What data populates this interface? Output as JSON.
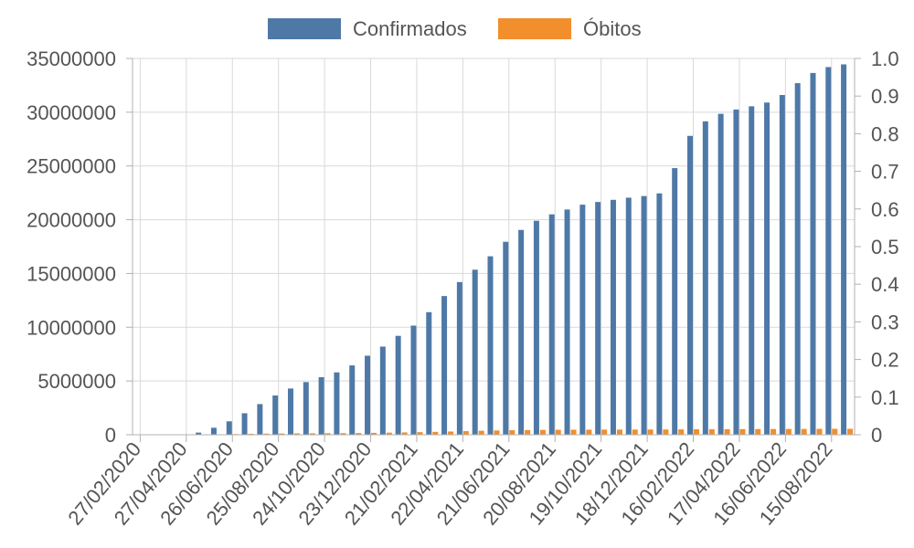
{
  "chart_data": {
    "type": "bar",
    "legend_position": "top",
    "grid": true,
    "series": [
      {
        "name": "Confirmados",
        "color": "#4e79a7",
        "axis": "left",
        "values": [
          0,
          0,
          0,
          0,
          200000,
          650000,
          1250000,
          2000000,
          2850000,
          3650000,
          4300000,
          4900000,
          5350000,
          5800000,
          6450000,
          7350000,
          8200000,
          9200000,
          10150000,
          11400000,
          12900000,
          14200000,
          15350000,
          16600000,
          17950000,
          19050000,
          19900000,
          20500000,
          20950000,
          21400000,
          21650000,
          21850000,
          22050000,
          22200000,
          22450000,
          24800000,
          27800000,
          29150000,
          29850000,
          30250000,
          30550000,
          30900000,
          31600000,
          32700000,
          33650000,
          34200000,
          34450000
        ]
      },
      {
        "name": "Óbitos",
        "color": "#f28e2b",
        "axis": "right",
        "values": [
          0,
          0,
          0,
          0,
          0.0004,
          0.0011,
          0.0018,
          0.0025,
          0.003,
          0.0034,
          0.0037,
          0.0039,
          0.0041,
          0.0043,
          0.0046,
          0.0051,
          0.0056,
          0.0062,
          0.0069,
          0.0077,
          0.0086,
          0.0096,
          0.0106,
          0.0114,
          0.012,
          0.0125,
          0.0129,
          0.0132,
          0.0134,
          0.0135,
          0.0136,
          0.0137,
          0.0138,
          0.0139,
          0.014,
          0.0142,
          0.0145,
          0.0147,
          0.0149,
          0.015,
          0.0151,
          0.0152,
          0.0153,
          0.0154,
          0.0156,
          0.0157,
          0.0158
        ]
      }
    ],
    "x_tick_labels": [
      "27/02/2020",
      "27/04/2020",
      "26/06/2020",
      "25/08/2020",
      "24/10/2020",
      "23/12/2020",
      "21/02/2021",
      "22/04/2021",
      "21/06/2021",
      "20/08/2021",
      "19/10/2021",
      "18/12/2021",
      "16/02/2022",
      "17/04/2022",
      "16/06/2022",
      "15/08/2022"
    ],
    "y_left": {
      "range": [
        0,
        35000000
      ],
      "ticks": [
        "0",
        "5000000",
        "10000000",
        "15000000",
        "20000000",
        "25000000",
        "30000000",
        "35000000"
      ]
    },
    "y_right": {
      "range": [
        0,
        1.0
      ],
      "ticks": [
        "0",
        "0.1",
        "0.2",
        "0.3",
        "0.4",
        "0.5",
        "0.6",
        "0.7",
        "0.8",
        "0.9",
        "1.0"
      ]
    }
  }
}
